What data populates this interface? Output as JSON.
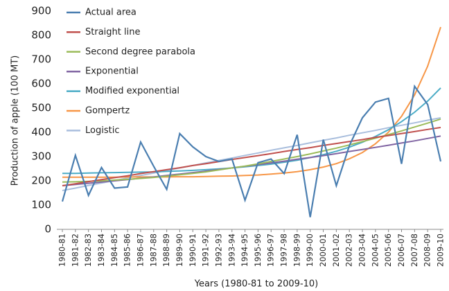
{
  "chart_data": {
    "type": "line",
    "ylabel": "Production of apple (100 MT)",
    "xlabel": "Years (1980-81 to 2009-10)",
    "categories": [
      "1980-81",
      "1981-82",
      "1982-83",
      "1983-84",
      "1984-85",
      "1985-86",
      "1986-87",
      "1987-88",
      "1988-89",
      "1989-90",
      "1990-91",
      "1991-92",
      "1992-93",
      "1993-94",
      "1994-95",
      "1995-96",
      "1996-97",
      "1997-98",
      "1998-99",
      "1999-00",
      "2000-01",
      "2001-02",
      "2002-03",
      "2003-04",
      "2004-05",
      "2005-06",
      "2006-07",
      "2007-08",
      "2008-09",
      "2009-10"
    ],
    "series": [
      {
        "name": "Actual area",
        "color": "#4a7eb0",
        "values": [
          115,
          305,
          140,
          255,
          170,
          175,
          360,
          260,
          165,
          395,
          340,
          300,
          280,
          290,
          120,
          275,
          290,
          230,
          390,
          50,
          370,
          180,
          345,
          460,
          525,
          540,
          270,
          590,
          515,
          280
        ]
      },
      {
        "name": "Straight line",
        "color": "#c0504d",
        "values": [
          180,
          188,
          197,
          205,
          213,
          221,
          230,
          238,
          246,
          254,
          263,
          271,
          279,
          288,
          296,
          304,
          312,
          321,
          329,
          337,
          346,
          354,
          362,
          370,
          379,
          387,
          395,
          403,
          412,
          420
        ]
      },
      {
        "name": "Second degree parabola",
        "color": "#9bbb59",
        "values": [
          195,
          196,
          198,
          200,
          203,
          206,
          210,
          214,
          219,
          225,
          231,
          237,
          245,
          253,
          261,
          270,
          280,
          290,
          300,
          311,
          323,
          335,
          348,
          362,
          376,
          391,
          406,
          422,
          438,
          455
        ]
      },
      {
        "name": "Exponential",
        "color": "#8064a2",
        "values": [
          180,
          185,
          190,
          195,
          200,
          205,
          211,
          216,
          222,
          228,
          234,
          240,
          247,
          253,
          260,
          267,
          274,
          281,
          289,
          296,
          304,
          312,
          321,
          329,
          338,
          347,
          356,
          365,
          375,
          385
        ]
      },
      {
        "name": "Modified exponential",
        "color": "#4bacc6",
        "values": [
          231,
          231,
          232,
          233,
          234,
          235,
          236,
          237,
          239,
          241,
          243,
          246,
          249,
          253,
          258,
          263,
          269,
          277,
          285,
          296,
          308,
          322,
          339,
          359,
          383,
          411,
          444,
          483,
          529,
          583
        ]
      },
      {
        "name": "Gompertz",
        "color": "#f79646",
        "values": [
          215,
          215,
          215,
          215,
          215,
          216,
          216,
          216,
          216,
          217,
          217,
          218,
          219,
          220,
          222,
          224,
          228,
          232,
          238,
          246,
          257,
          271,
          291,
          317,
          353,
          401,
          466,
          554,
          673,
          834
        ]
      },
      {
        "name": "Logistic",
        "color": "#a9bedd",
        "values": [
          160,
          170,
          181,
          191,
          201,
          212,
          222,
          232,
          243,
          253,
          263,
          274,
          284,
          294,
          305,
          315,
          326,
          336,
          346,
          357,
          367,
          377,
          388,
          398,
          408,
          419,
          429,
          439,
          450,
          460
        ]
      }
    ],
    "ylim": [
      0,
      900
    ],
    "yticks": [
      0,
      100,
      200,
      300,
      400,
      500,
      600,
      700,
      800,
      900
    ],
    "grid": false,
    "legend": "upper left"
  }
}
